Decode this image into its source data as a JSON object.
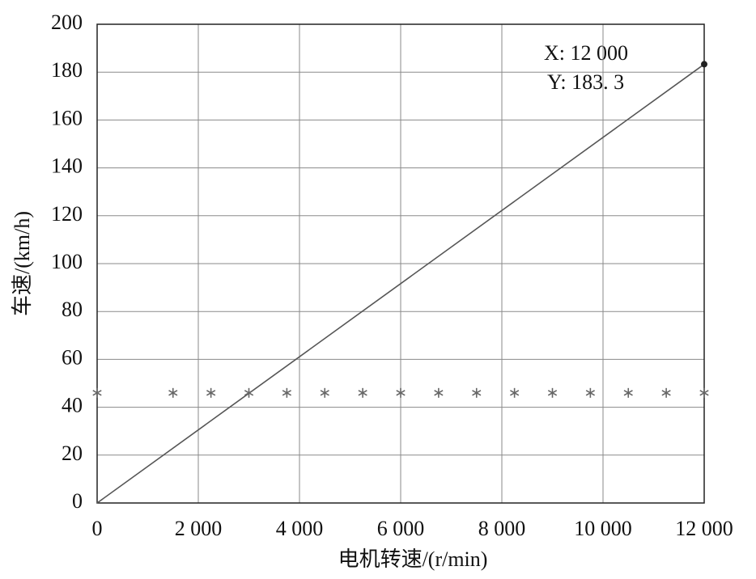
{
  "chart_data": {
    "type": "line",
    "xlabel": "电机转速/(r/min)",
    "ylabel": "车速/(km/h)",
    "xlim": [
      0,
      12000
    ],
    "ylim": [
      0,
      200
    ],
    "xticks": [
      0,
      {
        "value": 2000,
        "label": "2 000"
      },
      {
        "value": 4000,
        "label": "4 000"
      },
      {
        "value": 6000,
        "label": "6 000"
      },
      {
        "value": 8000,
        "label": "8 000"
      },
      {
        "value": 10000,
        "label": "10 000"
      },
      {
        "value": 12000,
        "label": "12 000"
      }
    ],
    "yticks": [
      0,
      20,
      40,
      60,
      80,
      100,
      120,
      140,
      160,
      180,
      200
    ],
    "grid": true,
    "series": [
      {
        "type": "line",
        "color": "#555555",
        "x": [
          0,
          12000
        ],
        "values": [
          0,
          183.3
        ]
      },
      {
        "type": "scatter",
        "color": "#666666",
        "x": [
          0,
          1500,
          2250,
          3000,
          3750,
          4500,
          5250,
          6000,
          6750,
          7500,
          8250,
          9000,
          9750,
          10500,
          11250,
          12000
        ],
        "values": [
          46,
          46,
          46,
          46,
          46,
          46,
          46,
          46,
          46,
          46,
          46,
          46,
          46,
          46,
          46,
          46
        ]
      }
    ],
    "annotations": [
      "X: 12 000",
      "Y: 183. 3"
    ]
  }
}
